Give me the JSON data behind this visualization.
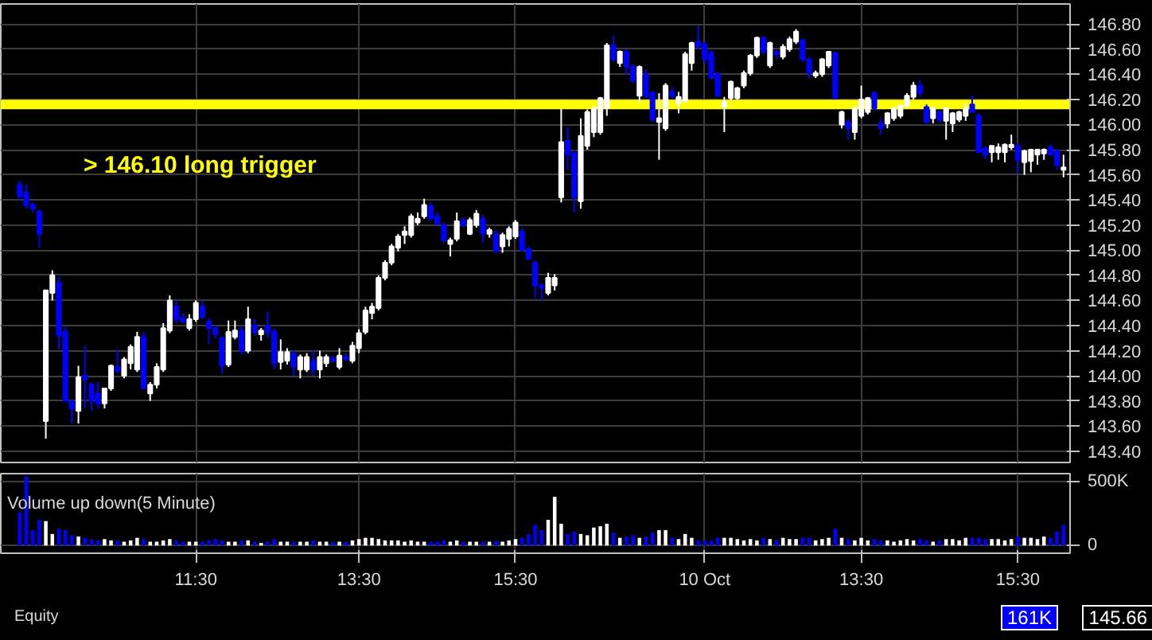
{
  "chart_data": [
    {
      "type": "candlestick",
      "categories": [
        null,
        null,
        null,
        null,
        null,
        null,
        null,
        null,
        null,
        null,
        null,
        null,
        null,
        null,
        null,
        null,
        null,
        null,
        null,
        null,
        null,
        null,
        null,
        null,
        null,
        null,
        null,
        null,
        null,
        null,
        null,
        null,
        null,
        null,
        null,
        null,
        null,
        null,
        null,
        null,
        null,
        null,
        null,
        null,
        null,
        null,
        null,
        null,
        null,
        null,
        null,
        null,
        null,
        null,
        null,
        null,
        null,
        null,
        null,
        null,
        null,
        null,
        null,
        null,
        null,
        null,
        null,
        null,
        null,
        null,
        null,
        null,
        null,
        null,
        null,
        null,
        null,
        null,
        null,
        null,
        null,
        null,
        null,
        null,
        null,
        null,
        null,
        null,
        null,
        null,
        null,
        null,
        null,
        null,
        null,
        null,
        null,
        null,
        null,
        null,
        null,
        null,
        null,
        null,
        null,
        null,
        null,
        null,
        null,
        null,
        null,
        null,
        null,
        null,
        null,
        null,
        null,
        null,
        null,
        null,
        null,
        null,
        null,
        null,
        null,
        null,
        null,
        null,
        null,
        null,
        null,
        null,
        null,
        null,
        null,
        null,
        null,
        null,
        null,
        null,
        null,
        null,
        null,
        null,
        null,
        null,
        null,
        null,
        null,
        null,
        null,
        null,
        null,
        null,
        null,
        null,
        null,
        null,
        null,
        null,
        null
      ],
      "ohlc": [
        [
          145.52,
          145.55,
          145.4,
          145.43
        ],
        [
          145.46,
          145.52,
          145.33,
          145.36
        ],
        [
          145.36,
          145.38,
          145.3,
          145.33
        ],
        [
          145.31,
          145.32,
          145.02,
          145.13
        ],
        [
          143.64,
          144.68,
          143.5,
          144.68
        ],
        [
          144.66,
          144.84,
          144.6,
          144.8
        ],
        [
          144.74,
          144.79,
          144.21,
          144.32
        ],
        [
          144.35,
          144.39,
          143.8,
          143.8
        ],
        [
          143.8,
          143.8,
          143.62,
          143.74
        ],
        [
          143.72,
          144.08,
          143.62,
          143.99
        ],
        [
          144.0,
          144.24,
          143.74,
          143.97
        ],
        [
          143.93,
          143.95,
          143.72,
          143.8
        ],
        [
          143.86,
          143.95,
          143.74,
          143.78
        ],
        [
          143.78,
          143.9,
          143.74,
          143.9
        ],
        [
          143.9,
          144.09,
          143.88,
          144.08
        ],
        [
          144.07,
          144.21,
          144.02,
          144.04
        ],
        [
          144.0,
          144.15,
          143.98,
          144.13
        ],
        [
          144.1,
          144.25,
          144.05,
          144.23
        ],
        [
          144.05,
          144.35,
          144.03,
          144.31
        ],
        [
          144.31,
          144.35,
          143.9,
          143.9
        ],
        [
          143.86,
          143.95,
          143.8,
          143.93
        ],
        [
          143.93,
          144.1,
          143.9,
          144.07
        ],
        [
          144.05,
          144.42,
          144.03,
          144.38
        ],
        [
          144.36,
          144.64,
          144.34,
          144.6
        ],
        [
          144.55,
          144.6,
          144.42,
          144.45
        ],
        [
          144.46,
          144.5,
          144.42,
          144.43
        ],
        [
          144.38,
          144.49,
          144.36,
          144.45
        ],
        [
          144.45,
          144.6,
          144.43,
          144.58
        ],
        [
          144.55,
          144.6,
          144.45,
          144.47
        ],
        [
          144.43,
          144.46,
          144.25,
          144.38
        ],
        [
          144.38,
          144.4,
          144.3,
          144.33
        ],
        [
          144.3,
          144.32,
          144.02,
          144.08
        ],
        [
          144.09,
          144.44,
          144.07,
          144.35
        ],
        [
          144.31,
          144.44,
          144.29,
          144.36
        ],
        [
          144.36,
          144.4,
          144.17,
          144.2
        ],
        [
          144.2,
          144.55,
          144.18,
          144.45
        ],
        [
          144.4,
          144.45,
          144.32,
          144.35
        ],
        [
          144.33,
          144.38,
          144.28,
          144.36
        ],
        [
          144.4,
          144.51,
          144.3,
          144.35
        ],
        [
          144.35,
          144.38,
          144.05,
          144.1
        ],
        [
          144.11,
          144.29,
          144.05,
          144.19
        ],
        [
          144.12,
          144.22,
          144.09,
          144.19
        ],
        [
          144.18,
          144.2,
          144.0,
          144.07
        ],
        [
          144.05,
          144.17,
          143.98,
          144.15
        ],
        [
          144.05,
          144.18,
          144.03,
          144.15
        ],
        [
          144.12,
          144.2,
          144.0,
          144.05
        ],
        [
          144.05,
          144.2,
          143.98,
          144.15
        ],
        [
          144.1,
          144.17,
          144.07,
          144.15
        ],
        [
          144.14,
          144.16,
          144.1,
          144.12
        ],
        [
          144.07,
          144.22,
          144.05,
          144.16
        ],
        [
          144.15,
          144.18,
          144.12,
          144.13
        ],
        [
          144.12,
          144.27,
          144.1,
          144.24
        ],
        [
          144.22,
          144.37,
          144.18,
          144.34
        ],
        [
          144.35,
          144.55,
          144.33,
          144.52
        ],
        [
          144.5,
          144.58,
          144.45,
          144.55
        ],
        [
          144.54,
          144.8,
          144.52,
          144.78
        ],
        [
          144.78,
          144.92,
          144.76,
          144.9
        ],
        [
          144.9,
          145.05,
          144.88,
          145.03
        ],
        [
          145.02,
          145.13,
          144.99,
          145.11
        ],
        [
          145.12,
          145.19,
          145.05,
          145.15
        ],
        [
          145.12,
          145.29,
          145.1,
          145.27
        ],
        [
          145.22,
          145.3,
          145.2,
          145.25
        ],
        [
          145.27,
          145.41,
          145.25,
          145.36
        ],
        [
          145.35,
          145.38,
          145.24,
          145.25
        ],
        [
          145.27,
          145.3,
          145.2,
          145.21
        ],
        [
          145.2,
          145.22,
          145.06,
          145.08
        ],
        [
          145.05,
          145.1,
          144.95,
          145.08
        ],
        [
          145.09,
          145.3,
          145.07,
          145.23
        ],
        [
          145.24,
          145.26,
          145.18,
          145.2
        ],
        [
          145.13,
          145.26,
          145.12,
          145.24
        ],
        [
          145.2,
          145.32,
          145.18,
          145.29
        ],
        [
          145.25,
          145.28,
          145.06,
          145.13
        ],
        [
          145.13,
          145.18,
          145.1,
          145.16
        ],
        [
          145.13,
          145.16,
          144.98,
          144.99
        ],
        [
          145.03,
          145.14,
          144.98,
          145.12
        ],
        [
          145.09,
          145.19,
          145.03,
          145.17
        ],
        [
          145.11,
          145.24,
          145.09,
          145.22
        ],
        [
          145.15,
          145.18,
          144.99,
          145.0
        ],
        [
          145.01,
          145.03,
          144.92,
          144.93
        ],
        [
          144.9,
          144.92,
          144.62,
          144.72
        ],
        [
          144.72,
          144.74,
          144.6,
          144.7
        ],
        [
          144.66,
          144.82,
          144.64,
          144.78
        ],
        [
          144.72,
          144.81,
          144.68,
          144.78
        ],
        [
          145.42,
          146.13,
          145.38,
          145.86
        ],
        [
          145.87,
          145.98,
          145.64,
          145.76
        ],
        [
          145.77,
          145.8,
          145.3,
          145.42
        ],
        [
          145.39,
          146.05,
          145.33,
          145.91
        ],
        [
          145.83,
          146.12,
          145.8,
          146.1
        ],
        [
          145.94,
          146.15,
          145.9,
          146.13
        ],
        [
          145.94,
          146.22,
          145.92,
          146.21
        ],
        [
          146.13,
          146.65,
          146.07,
          146.63
        ],
        [
          146.63,
          146.71,
          146.5,
          146.52
        ],
        [
          146.49,
          146.59,
          146.46,
          146.58
        ],
        [
          146.58,
          146.6,
          146.4,
          146.46
        ],
        [
          146.46,
          146.48,
          146.33,
          146.35
        ],
        [
          146.23,
          146.47,
          146.17,
          146.46
        ],
        [
          146.4,
          146.44,
          146.2,
          146.23
        ],
        [
          146.25,
          146.27,
          146.02,
          146.04
        ],
        [
          146.02,
          146.25,
          145.72,
          146.05
        ],
        [
          145.97,
          146.33,
          145.95,
          146.31
        ],
        [
          146.26,
          146.3,
          146.2,
          146.23
        ],
        [
          146.17,
          146.26,
          146.09,
          146.22
        ],
        [
          146.19,
          146.58,
          146.17,
          146.56
        ],
        [
          146.49,
          146.66,
          146.43,
          146.65
        ],
        [
          146.66,
          146.79,
          146.6,
          146.62
        ],
        [
          146.64,
          146.66,
          146.48,
          146.52
        ],
        [
          146.57,
          146.59,
          146.37,
          146.37
        ],
        [
          146.4,
          146.42,
          146.22,
          146.23
        ],
        [
          146.14,
          146.22,
          145.94,
          146.18
        ],
        [
          146.21,
          146.35,
          146.19,
          146.34
        ],
        [
          146.21,
          146.3,
          146.19,
          146.29
        ],
        [
          146.31,
          146.43,
          146.29,
          146.41
        ],
        [
          146.41,
          146.56,
          146.39,
          146.55
        ],
        [
          146.55,
          146.7,
          146.53,
          146.69
        ],
        [
          146.69,
          146.7,
          146.56,
          146.58
        ],
        [
          146.47,
          146.66,
          146.45,
          146.65
        ],
        [
          146.58,
          146.6,
          146.52,
          146.56
        ],
        [
          146.54,
          146.64,
          146.52,
          146.62
        ],
        [
          146.6,
          146.7,
          146.58,
          146.68
        ],
        [
          146.66,
          146.76,
          146.64,
          146.74
        ],
        [
          146.67,
          146.69,
          146.5,
          146.52
        ],
        [
          146.52,
          146.54,
          146.37,
          146.41
        ],
        [
          146.39,
          146.43,
          146.37,
          146.41
        ],
        [
          146.4,
          146.53,
          146.38,
          146.52
        ],
        [
          146.47,
          146.58,
          146.45,
          146.58
        ],
        [
          146.57,
          146.58,
          146.21,
          146.21
        ],
        [
          146.0,
          146.11,
          145.97,
          146.1
        ],
        [
          146.02,
          146.04,
          145.88,
          145.97
        ],
        [
          145.94,
          146.15,
          145.88,
          146.13
        ],
        [
          146.07,
          146.31,
          146.05,
          146.2
        ],
        [
          146.1,
          146.22,
          146.08,
          146.21
        ],
        [
          146.25,
          146.27,
          146.11,
          146.13
        ],
        [
          146.01,
          146.05,
          145.92,
          145.97
        ],
        [
          146.01,
          146.1,
          145.97,
          146.09
        ],
        [
          146.05,
          146.14,
          146.03,
          146.13
        ],
        [
          146.07,
          146.16,
          146.05,
          146.15
        ],
        [
          146.15,
          146.25,
          146.13,
          146.23
        ],
        [
          146.22,
          146.34,
          146.2,
          146.31
        ],
        [
          146.31,
          146.35,
          146.22,
          146.25
        ],
        [
          146.14,
          146.16,
          146.0,
          146.02
        ],
        [
          146.05,
          146.14,
          146.01,
          146.13
        ],
        [
          146.1,
          146.12,
          146.01,
          146.04
        ],
        [
          146.03,
          146.14,
          145.88,
          146.13
        ],
        [
          146.01,
          146.1,
          145.94,
          146.09
        ],
        [
          146.04,
          146.11,
          146.02,
          146.1
        ],
        [
          146.07,
          146.17,
          146.03,
          146.13
        ],
        [
          146.16,
          146.23,
          146.1,
          146.1
        ],
        [
          146.07,
          146.09,
          145.78,
          145.78
        ],
        [
          145.81,
          145.83,
          145.72,
          145.76
        ],
        [
          145.78,
          145.83,
          145.7,
          145.83
        ],
        [
          145.78,
          145.85,
          145.72,
          145.82
        ],
        [
          145.78,
          145.85,
          145.7,
          145.84
        ],
        [
          145.82,
          145.92,
          145.8,
          145.84
        ],
        [
          145.83,
          145.85,
          145.61,
          145.72
        ],
        [
          145.7,
          145.8,
          145.6,
          145.79
        ],
        [
          145.71,
          145.8,
          145.62,
          145.8
        ],
        [
          145.76,
          145.8,
          145.68,
          145.8
        ],
        [
          145.77,
          145.81,
          145.72,
          145.8
        ],
        [
          145.82,
          145.84,
          145.75,
          145.76
        ],
        [
          145.79,
          145.81,
          145.64,
          145.68
        ],
        [
          145.64,
          145.76,
          145.58,
          145.66
        ]
      ],
      "colors": [
        "#0000ff",
        "#0000ff",
        "#0000ff",
        "#0000ff",
        "#ffffff",
        "#ffffff",
        "#0000ff",
        "#0000ff",
        "#0000ff",
        "#ffffff",
        "#0000ff",
        "#0000ff",
        "#0000ff",
        "#ffffff",
        "#ffffff",
        "#0000ff",
        "#ffffff",
        "#ffffff",
        "#ffffff",
        "#0000ff",
        "#ffffff",
        "#ffffff",
        "#ffffff",
        "#ffffff",
        "#0000ff",
        "#0000ff",
        "#ffffff",
        "#ffffff",
        "#0000ff",
        "#0000ff",
        "#0000ff",
        "#0000ff",
        "#ffffff",
        "#ffffff",
        "#0000ff",
        "#ffffff",
        "#0000ff",
        "#ffffff",
        "#0000ff",
        "#0000ff",
        "#ffffff",
        "#ffffff",
        "#0000ff",
        "#ffffff",
        "#ffffff",
        "#0000ff",
        "#ffffff",
        "#ffffff",
        "#0000ff",
        "#ffffff",
        "#0000ff",
        "#ffffff",
        "#ffffff",
        "#ffffff",
        "#ffffff",
        "#ffffff",
        "#ffffff",
        "#ffffff",
        "#ffffff",
        "#ffffff",
        "#ffffff",
        "#ffffff",
        "#ffffff",
        "#0000ff",
        "#0000ff",
        "#0000ff",
        "#ffffff",
        "#ffffff",
        "#0000ff",
        "#ffffff",
        "#ffffff",
        "#0000ff",
        "#ffffff",
        "#0000ff",
        "#ffffff",
        "#ffffff",
        "#ffffff",
        "#0000ff",
        "#0000ff",
        "#0000ff",
        "#0000ff",
        "#ffffff",
        "#ffffff",
        "#ffffff",
        "#0000ff",
        "#0000ff",
        "#ffffff",
        "#ffffff",
        "#ffffff",
        "#ffffff",
        "#ffffff",
        "#0000ff",
        "#ffffff",
        "#0000ff",
        "#0000ff",
        "#ffffff",
        "#0000ff",
        "#0000ff",
        "#ffffff",
        "#ffffff",
        "#0000ff",
        "#ffffff",
        "#ffffff",
        "#ffffff",
        "#0000ff",
        "#0000ff",
        "#0000ff",
        "#0000ff",
        "#ffffff",
        "#ffffff",
        "#ffffff",
        "#ffffff",
        "#ffffff",
        "#ffffff",
        "#0000ff",
        "#ffffff",
        "#0000ff",
        "#ffffff",
        "#ffffff",
        "#ffffff",
        "#0000ff",
        "#0000ff",
        "#ffffff",
        "#ffffff",
        "#ffffff",
        "#0000ff",
        "#ffffff",
        "#0000ff",
        "#ffffff",
        "#ffffff",
        "#ffffff",
        "#0000ff",
        "#0000ff",
        "#ffffff",
        "#ffffff",
        "#ffffff",
        "#ffffff",
        "#ffffff",
        "#0000ff",
        "#0000ff",
        "#ffffff",
        "#0000ff",
        "#ffffff",
        "#ffffff",
        "#ffffff",
        "#ffffff",
        "#0000ff",
        "#0000ff",
        "#0000ff",
        "#ffffff",
        "#ffffff",
        "#ffffff",
        "#ffffff",
        "#0000ff",
        "#ffffff",
        "#ffffff",
        "#ffffff",
        "#ffffff",
        "#0000ff",
        "#0000ff",
        "#ffffff"
      ],
      "ylim": [
        143.31,
        146.96
      ],
      "yticks": [
        {
          "value": 143.4,
          "label": "143.40"
        },
        {
          "value": 143.6,
          "label": "143.60"
        },
        {
          "value": 143.8,
          "label": "143.80"
        },
        {
          "value": 144.0,
          "label": "144.00"
        },
        {
          "value": 144.2,
          "label": "144.20"
        },
        {
          "value": 144.4,
          "label": "144.40"
        },
        {
          "value": 144.6,
          "label": "144.60"
        },
        {
          "value": 144.8,
          "label": "144.80"
        },
        {
          "value": 145.0,
          "label": "145.00"
        },
        {
          "value": 145.2,
          "label": "145.20"
        },
        {
          "value": 145.4,
          "label": "145.40"
        },
        {
          "value": 145.6,
          "label": "145.60"
        },
        {
          "value": 145.8,
          "label": "145.80"
        },
        {
          "value": 146.0,
          "label": "146.00"
        },
        {
          "value": 146.2,
          "label": "146.20"
        },
        {
          "value": 146.4,
          "label": "146.40"
        },
        {
          "value": 146.6,
          "label": "146.60"
        },
        {
          "value": 146.8,
          "label": "146.80"
        }
      ],
      "ref_lines": [
        {
          "axis": "y",
          "value": 146.16,
          "color": "#ffff00"
        }
      ],
      "annotations": [
        "> 146.10 long trigger",
        "145.66"
      ],
      "grid": true,
      "tick_labels": "y"
    },
    {
      "type": "bar",
      "title": "Volume up down(5 Minute)",
      "categories": [
        null,
        null,
        null,
        null,
        null,
        null,
        null,
        null,
        null,
        null,
        null,
        null,
        null,
        null,
        null,
        null,
        null,
        null,
        null,
        null,
        null,
        null,
        null,
        null,
        null,
        null,
        null,
        "11:30",
        null,
        null,
        null,
        null,
        null,
        null,
        null,
        null,
        null,
        null,
        null,
        null,
        null,
        null,
        null,
        null,
        null,
        null,
        null,
        null,
        null,
        null,
        null,
        null,
        "13:30",
        null,
        null,
        null,
        null,
        null,
        null,
        null,
        null,
        null,
        null,
        null,
        null,
        null,
        null,
        null,
        null,
        null,
        null,
        null,
        null,
        null,
        null,
        null,
        "15:30",
        null,
        null,
        null,
        null,
        null,
        null,
        null,
        null,
        null,
        null,
        null,
        null,
        null,
        null,
        null,
        null,
        null,
        null,
        null,
        null,
        null,
        null,
        null,
        null,
        null,
        null,
        null,
        null,
        "10 Oct",
        null,
        null,
        null,
        null,
        null,
        null,
        null,
        null,
        null,
        null,
        null,
        null,
        null,
        null,
        null,
        null,
        null,
        null,
        null,
        null,
        null,
        null,
        null,
        "13:30",
        null,
        null,
        null,
        null,
        null,
        null,
        null,
        null,
        null,
        null,
        null,
        null,
        null,
        null,
        null,
        null,
        null,
        null,
        null,
        null,
        null,
        null,
        null,
        "15:30",
        null,
        null,
        null,
        null,
        null,
        null,
        null
      ],
      "values": [
        260,
        540,
        120,
        200,
        190,
        90,
        130,
        120,
        80,
        70,
        60,
        50,
        40,
        50,
        40,
        40,
        30,
        40,
        60,
        50,
        30,
        30,
        40,
        50,
        40,
        30,
        30,
        30,
        30,
        40,
        50,
        40,
        30,
        30,
        40,
        40,
        30,
        20,
        30,
        50,
        30,
        30,
        30,
        30,
        30,
        40,
        30,
        30,
        30,
        30,
        30,
        40,
        50,
        60,
        60,
        50,
        40,
        40,
        40,
        30,
        40,
        30,
        30,
        30,
        30,
        40,
        30,
        40,
        30,
        30,
        30,
        30,
        30,
        40,
        30,
        40,
        50,
        60,
        90,
        160,
        120,
        200,
        380,
        170,
        90,
        110,
        90,
        80,
        140,
        150,
        170,
        100,
        60,
        70,
        80,
        60,
        70,
        100,
        120,
        120,
        60,
        50,
        90,
        60,
        40,
        40,
        40,
        60,
        60,
        60,
        50,
        40,
        50,
        40,
        60,
        50,
        40,
        60,
        50,
        50,
        60,
        60,
        40,
        50,
        60,
        130,
        60,
        50,
        40,
        60,
        40,
        50,
        40,
        40,
        30,
        40,
        50,
        40,
        50,
        40,
        30,
        40,
        50,
        50,
        40,
        60,
        60,
        60,
        50,
        50,
        50,
        40,
        50,
        70,
        60,
        60,
        50,
        70,
        60,
        110,
        161
      ],
      "colors": [
        "#0000ff",
        "#0000ff",
        "#0000ff",
        "#0000ff",
        "#ffffff",
        "#ffffff",
        "#0000ff",
        "#0000ff",
        "#0000ff",
        "#ffffff",
        "#0000ff",
        "#0000ff",
        "#0000ff",
        "#ffffff",
        "#ffffff",
        "#0000ff",
        "#ffffff",
        "#ffffff",
        "#ffffff",
        "#0000ff",
        "#ffffff",
        "#ffffff",
        "#ffffff",
        "#ffffff",
        "#0000ff",
        "#0000ff",
        "#ffffff",
        "#ffffff",
        "#0000ff",
        "#0000ff",
        "#0000ff",
        "#0000ff",
        "#ffffff",
        "#ffffff",
        "#0000ff",
        "#ffffff",
        "#0000ff",
        "#ffffff",
        "#0000ff",
        "#0000ff",
        "#ffffff",
        "#ffffff",
        "#0000ff",
        "#ffffff",
        "#ffffff",
        "#0000ff",
        "#ffffff",
        "#ffffff",
        "#0000ff",
        "#ffffff",
        "#0000ff",
        "#ffffff",
        "#ffffff",
        "#ffffff",
        "#ffffff",
        "#ffffff",
        "#ffffff",
        "#ffffff",
        "#ffffff",
        "#ffffff",
        "#ffffff",
        "#ffffff",
        "#ffffff",
        "#0000ff",
        "#0000ff",
        "#0000ff",
        "#ffffff",
        "#ffffff",
        "#0000ff",
        "#ffffff",
        "#ffffff",
        "#0000ff",
        "#ffffff",
        "#0000ff",
        "#ffffff",
        "#ffffff",
        "#ffffff",
        "#0000ff",
        "#0000ff",
        "#0000ff",
        "#0000ff",
        "#ffffff",
        "#ffffff",
        "#ffffff",
        "#0000ff",
        "#0000ff",
        "#ffffff",
        "#ffffff",
        "#ffffff",
        "#ffffff",
        "#ffffff",
        "#0000ff",
        "#ffffff",
        "#0000ff",
        "#0000ff",
        "#ffffff",
        "#0000ff",
        "#0000ff",
        "#ffffff",
        "#ffffff",
        "#0000ff",
        "#ffffff",
        "#ffffff",
        "#ffffff",
        "#0000ff",
        "#0000ff",
        "#0000ff",
        "#0000ff",
        "#ffffff",
        "#ffffff",
        "#ffffff",
        "#ffffff",
        "#ffffff",
        "#ffffff",
        "#0000ff",
        "#ffffff",
        "#0000ff",
        "#ffffff",
        "#ffffff",
        "#ffffff",
        "#0000ff",
        "#0000ff",
        "#ffffff",
        "#ffffff",
        "#ffffff",
        "#0000ff",
        "#ffffff",
        "#0000ff",
        "#ffffff",
        "#ffffff",
        "#ffffff",
        "#0000ff",
        "#0000ff",
        "#ffffff",
        "#ffffff",
        "#ffffff",
        "#ffffff",
        "#ffffff",
        "#0000ff",
        "#0000ff",
        "#ffffff",
        "#0000ff",
        "#ffffff",
        "#ffffff",
        "#ffffff",
        "#ffffff",
        "#0000ff",
        "#0000ff",
        "#0000ff",
        "#ffffff",
        "#ffffff",
        "#ffffff",
        "#ffffff",
        "#0000ff",
        "#ffffff",
        "#ffffff",
        "#ffffff",
        "#ffffff",
        "#0000ff",
        "#0000ff",
        "#0000ff"
      ],
      "ylim": [
        -60,
        560
      ],
      "yticks": [
        0,
        {
          "value": 500,
          "label": "500K"
        }
      ],
      "annotations": [
        "Equity",
        "161K"
      ],
      "grid": true
    }
  ]
}
